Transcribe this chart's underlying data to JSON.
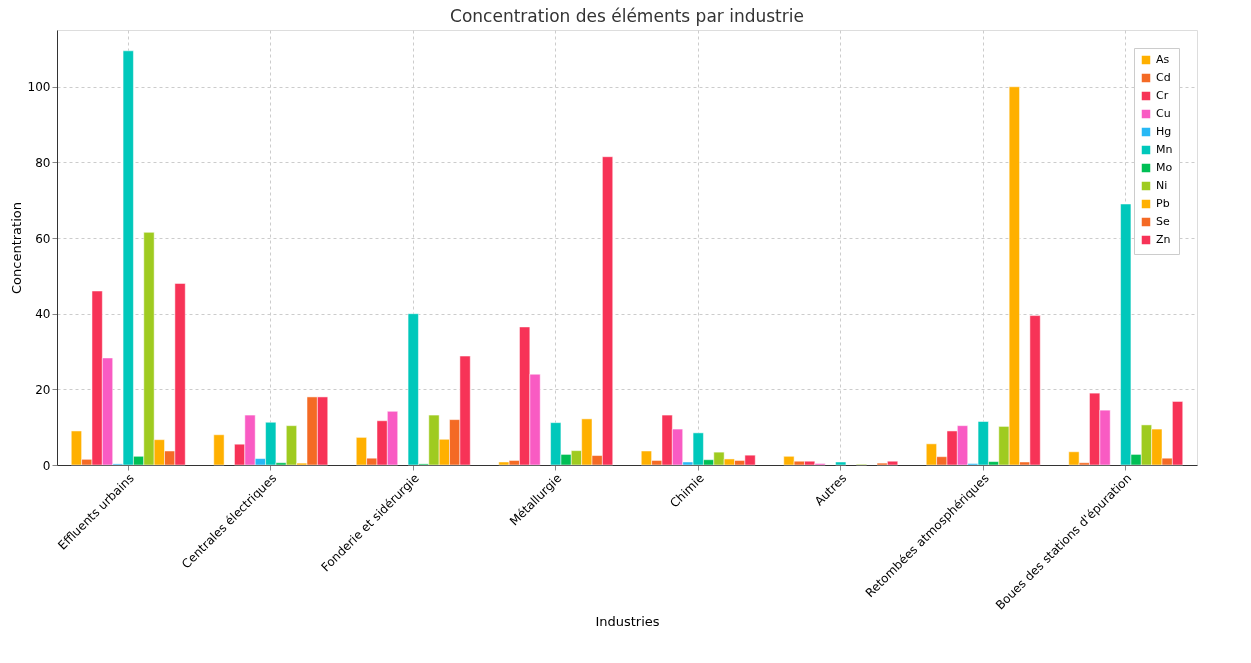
{
  "chart_data": {
    "type": "bar",
    "title": "Concentration des éléments par industrie",
    "xlabel": "Industries",
    "ylabel": "Concentration",
    "categories": [
      "Effluents urbains",
      "Centrales électriques",
      "Fonderie et sidérurgie",
      "Métallurgie",
      "Chimie",
      "Autres",
      "Retombées atmosphériques",
      "Boues des stations d'épuration"
    ],
    "series": [
      {
        "name": "As",
        "color": "#ffb000",
        "values": [
          9,
          8,
          7.3,
          0.8,
          3.7,
          2.3,
          5.6,
          3.5
        ]
      },
      {
        "name": "Cd",
        "color": "#f46a25",
        "values": [
          1.5,
          null,
          1.8,
          1.2,
          1.2,
          1,
          2.2,
          0.6
        ]
      },
      {
        "name": "Cr",
        "color": "#f73357",
        "values": [
          46,
          5.5,
          11.7,
          36.5,
          13.2,
          1,
          9,
          19
        ]
      },
      {
        "name": "Cu",
        "color": "#f95bc3",
        "values": [
          28.3,
          13.2,
          14.2,
          24,
          9.5,
          0.4,
          10.4,
          14.5
        ]
      },
      {
        "name": "Hg",
        "color": "#27b8f5",
        "values": [
          0.3,
          1.7,
          null,
          null,
          0.8,
          null,
          0.4,
          null
        ]
      },
      {
        "name": "Mn",
        "color": "#00c8bb",
        "values": [
          109.5,
          11.3,
          40,
          11.2,
          8.5,
          0.8,
          11.5,
          69
        ]
      },
      {
        "name": "Mo",
        "color": "#00bf55",
        "values": [
          2.3,
          0.6,
          0.3,
          2.8,
          1.4,
          null,
          0.9,
          2.8
        ]
      },
      {
        "name": "Ni",
        "color": "#9fcb20",
        "values": [
          61.5,
          10.4,
          13.2,
          3.8,
          3.4,
          0.2,
          10.2,
          10.6
        ]
      },
      {
        "name": "Pb",
        "color": "#ffb000",
        "values": [
          6.7,
          0.5,
          6.8,
          12.2,
          1.6,
          null,
          100,
          9.5
        ]
      },
      {
        "name": "Se",
        "color": "#f46a25",
        "values": [
          3.7,
          18,
          12,
          2.5,
          1.2,
          0.5,
          0.8,
          1.8
        ]
      },
      {
        "name": "Zn",
        "color": "#f73357",
        "values": [
          48,
          18,
          28.8,
          81.5,
          2.6,
          1,
          39.5,
          16.8
        ]
      }
    ],
    "ylim": [
      0,
      115
    ],
    "yticks": [
      0,
      20,
      40,
      60,
      80,
      100
    ],
    "grid": true,
    "legend": "top right"
  }
}
